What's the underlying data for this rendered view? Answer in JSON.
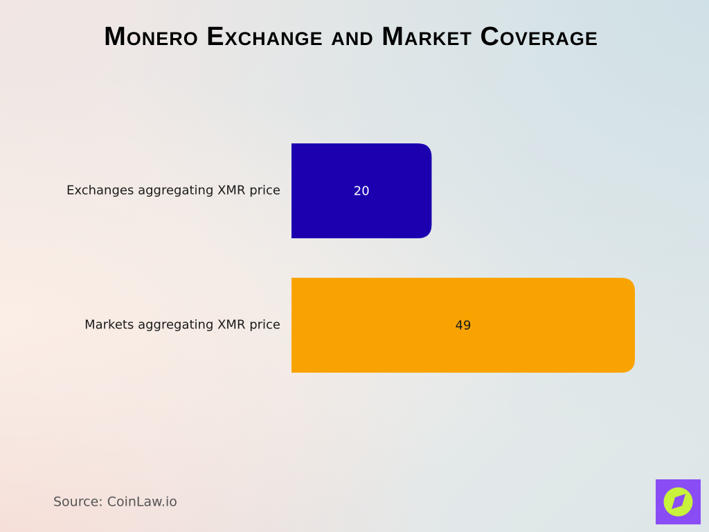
{
  "chart_data": {
    "type": "bar",
    "orientation": "horizontal",
    "title": "Monero Exchange and Market Coverage",
    "categories": [
      "Exchanges aggregating XMR price",
      "Markets aggregating XMR price"
    ],
    "values": [
      20,
      49
    ],
    "colors": [
      "#1c00b0",
      "#f9a303"
    ],
    "source": "Source: CoinLaw.io"
  }
}
